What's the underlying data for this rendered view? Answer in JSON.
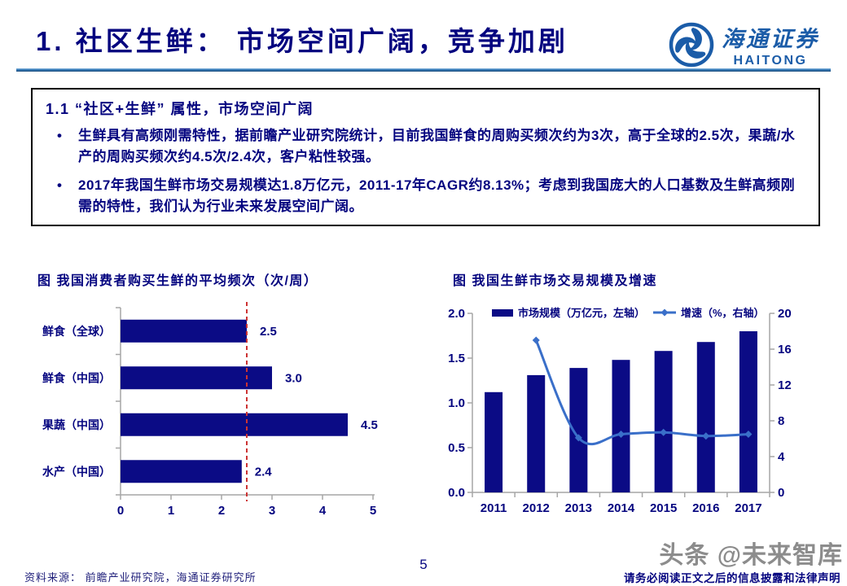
{
  "header": {
    "title": "1. 社区生鲜： 市场空间广阔，竞争加剧",
    "logo_cn": "海通证券",
    "logo_en": "HAITONG"
  },
  "info_box": {
    "heading": "1.1 “社区+生鲜” 属性，市场空间广阔",
    "bullets": [
      "生鲜具有高频刚需特性，据前瞻产业研究院统计，目前我国鲜食的周购买频次约为3次，高于全球的2.5次，果蔬/水产的周购买频次约4.5次/2.4次，客户粘性较强。",
      "2017年我国生鲜市场交易规模达1.8万亿元，2011-17年CAGR约8.13%；考虑到我国庞大的人口基数及生鲜高频刚需的特性，我们认为行业未来发展空间广阔。"
    ]
  },
  "chart_data": [
    {
      "type": "bar",
      "orientation": "horizontal",
      "title": "图  我国消费者购买生鲜的平均频次（次/周）",
      "categories": [
        "鲜食（全球）",
        "鲜食（中国）",
        "果蔬（中国）",
        "水产（中国）"
      ],
      "values": [
        2.5,
        3.0,
        4.5,
        2.4
      ],
      "value_labels": [
        "2.5",
        "3.0",
        "4.5",
        "2.4"
      ],
      "xlim": [
        0,
        5
      ],
      "x_ticks": [
        "0",
        "1",
        "2",
        "3",
        "4",
        "5"
      ],
      "reference_line_x": 2.5,
      "grid": false,
      "legend_position": "none"
    },
    {
      "type": "combo_bar_line",
      "title": "图  我国生鲜市场交易规模及增速",
      "categories": [
        "2011",
        "2012",
        "2013",
        "2014",
        "2015",
        "2016",
        "2017"
      ],
      "series": [
        {
          "name": "市场规模（万亿元，左轴）",
          "type": "bar",
          "axis": "left",
          "values": [
            1.12,
            1.31,
            1.39,
            1.48,
            1.58,
            1.68,
            1.8
          ]
        },
        {
          "name": "增速（%，右轴）",
          "type": "line",
          "axis": "right",
          "values": [
            null,
            17.0,
            6.1,
            6.5,
            6.7,
            6.3,
            6.5
          ]
        }
      ],
      "left_axis": {
        "min": 0.0,
        "max": 2.0,
        "ticks": [
          "0.0",
          "0.5",
          "1.0",
          "1.5",
          "2.0"
        ]
      },
      "right_axis": {
        "min": 0,
        "max": 20,
        "ticks": [
          "0",
          "4",
          "8",
          "12",
          "16",
          "20"
        ]
      },
      "grid": false,
      "legend_position": "top"
    }
  ],
  "footer": {
    "source": "资料来源：  前瞻产业研究院，海通证券研究所",
    "page_number": "5",
    "watermark": "头条 @未来智库",
    "disclaimer": "请务必阅读正文之后的信息披露和法律声明"
  },
  "colors": {
    "navy_text": "#04047F",
    "bar_navy": "#0B0B85",
    "line_blue": "#3A6FC9",
    "reference_red": "#CC3333",
    "axis_gray": "#A6A6A6",
    "separator_blue": "#2E74B5",
    "logo_blue": "#1B5CA8",
    "watermark_gray": "#8C8C8C"
  }
}
